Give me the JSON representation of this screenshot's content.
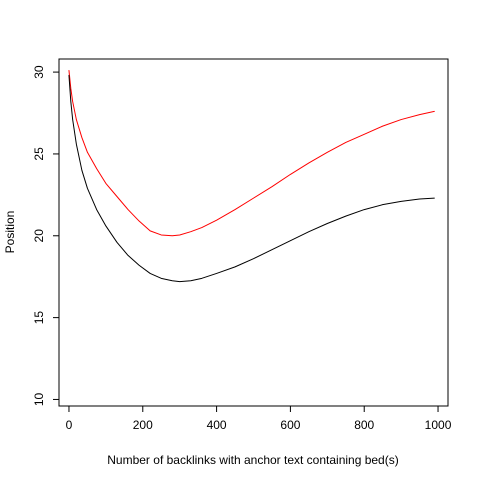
{
  "chart_data": {
    "type": "line",
    "title": "",
    "xlabel": "Number of backlinks with anchor text containing bed(s)",
    "ylabel": "Position",
    "xlim": [
      -27,
      1027
    ],
    "ylim": [
      9.6,
      30.8
    ],
    "x_ticks": [
      0,
      200,
      400,
      600,
      800,
      1000
    ],
    "x_tick_labels": [
      "0",
      "200",
      "400",
      "600",
      "800",
      "1000"
    ],
    "y_ticks": [
      10,
      15,
      20,
      25,
      30
    ],
    "y_tick_labels": [
      "10",
      "15",
      "20",
      "25",
      "30"
    ],
    "grid": false,
    "legend": "none",
    "series": [
      {
        "color": "#ff0000",
        "x": [
          0,
          5,
          10,
          20,
          35,
          50,
          75,
          100,
          130,
          160,
          190,
          220,
          250,
          280,
          300,
          330,
          360,
          400,
          450,
          500,
          550,
          600,
          650,
          700,
          750,
          800,
          850,
          900,
          950,
          990
        ],
        "y": [
          30.1,
          29.0,
          28.2,
          27.1,
          26.0,
          25.1,
          24.1,
          23.2,
          22.4,
          21.6,
          20.9,
          20.3,
          20.05,
          20.0,
          20.05,
          20.25,
          20.5,
          20.95,
          21.6,
          22.3,
          23.0,
          23.75,
          24.45,
          25.1,
          25.7,
          26.2,
          26.7,
          27.1,
          27.4,
          27.6
        ]
      },
      {
        "color": "#000000",
        "x": [
          0,
          5,
          10,
          20,
          35,
          50,
          75,
          100,
          130,
          160,
          190,
          220,
          250,
          280,
          300,
          330,
          360,
          400,
          450,
          500,
          550,
          600,
          650,
          700,
          750,
          800,
          850,
          900,
          950,
          990
        ],
        "y": [
          29.8,
          28.2,
          27.1,
          25.6,
          24.0,
          22.9,
          21.6,
          20.6,
          19.6,
          18.8,
          18.2,
          17.7,
          17.4,
          17.25,
          17.2,
          17.25,
          17.4,
          17.7,
          18.1,
          18.6,
          19.15,
          19.7,
          20.25,
          20.75,
          21.2,
          21.6,
          21.9,
          22.1,
          22.25,
          22.3
        ]
      }
    ]
  }
}
